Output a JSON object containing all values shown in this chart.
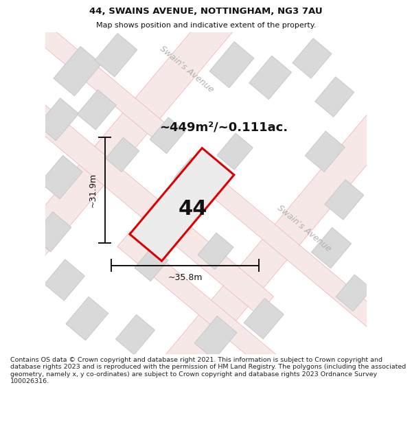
{
  "title_line1": "44, SWAINS AVENUE, NOTTINGHAM, NG3 7AU",
  "title_line2": "Map shows position and indicative extent of the property.",
  "area_label": "~449m²/~0.111ac.",
  "plot_number": "44",
  "dim_height": "~31.9m",
  "dim_width": "~35.8m",
  "street_name_top": "Swain's Avenue",
  "street_name_right": "Swain's Avenue",
  "footer_text": "Contains OS data © Crown copyright and database right 2021. This information is subject to Crown copyright and database rights 2023 and is reproduced with the permission of HM Land Registry. The polygons (including the associated geometry, namely x, y co-ordinates) are subject to Crown copyright and database rights 2023 Ordnance Survey 100026316.",
  "map_bg": "#f2f0f0",
  "road_fill": "#f7e8e8",
  "road_edge": "#f0b8b8",
  "building_color": "#d9d9d9",
  "building_edge": "#c8c8c8",
  "plot_edge": "#dd0000",
  "plot_fill": "#ececec",
  "dim_color": "#111111",
  "text_color": "#111111",
  "street_color": "#b0b0b0",
  "footer_color": "#222222",
  "white": "#ffffff",
  "title_fontsize": 9.5,
  "subtitle_fontsize": 8.0,
  "area_fontsize": 13,
  "plot_label_fontsize": 22,
  "dim_fontsize": 9,
  "street_fontsize": 9,
  "footer_fontsize": 6.8
}
